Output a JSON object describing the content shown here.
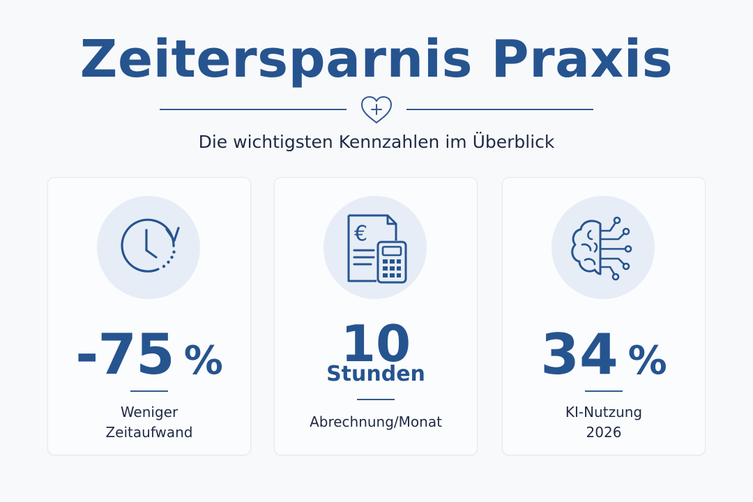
{
  "header": {
    "title": "Zeitersparnis Praxis",
    "subtitle": "Die wichtigsten Kennzahlen im Überblick",
    "divider_icon": "heart-plus-icon"
  },
  "colors": {
    "primary": "#26548f",
    "text": "#1f2a44",
    "icon_circle": "#e6edf6",
    "background": "#f8f9fb",
    "card_border": "#e5e8ed"
  },
  "cards": [
    {
      "icon": "clock-refresh-icon",
      "value": "-75",
      "unit": "%",
      "caption_lines": [
        "Weniger",
        "Zeitaufwand"
      ]
    },
    {
      "icon": "invoice-calculator-icon",
      "value": "10",
      "unit_line": "Stunden",
      "caption_lines": [
        "Abrechnung/Monat"
      ]
    },
    {
      "icon": "brain-circuit-icon",
      "value": "34",
      "unit": "%",
      "caption_lines": [
        "KI-Nutzung",
        "2026"
      ]
    }
  ]
}
